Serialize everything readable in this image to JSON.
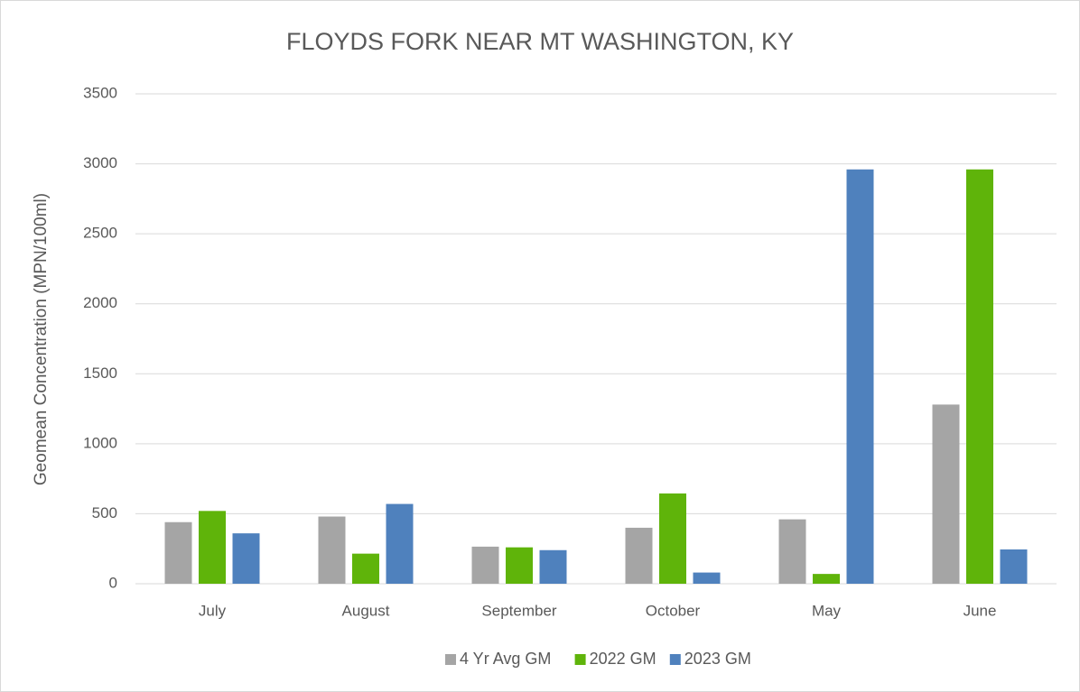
{
  "chart_data": {
    "type": "bar",
    "title": "FLOYDS FORK NEAR MT WASHINGTON, KY",
    "y_label": "Geomean Concentration (MPN/100ml)",
    "categories": [
      "July",
      "August",
      "September",
      "October",
      "May",
      "June"
    ],
    "series": [
      {
        "name": "4 Yr Avg GM",
        "color": "#a5a5a5",
        "values": [
          440,
          480,
          265,
          400,
          460,
          1280
        ]
      },
      {
        "name": "2022 GM",
        "color": "#5fb40a",
        "values": [
          520,
          215,
          260,
          645,
          70,
          2960
        ]
      },
      {
        "name": "2023 GM",
        "color": "#4f81bd",
        "values": [
          360,
          570,
          240,
          80,
          2960,
          245
        ]
      }
    ],
    "ylim": [
      0,
      3500
    ],
    "yticks": [
      0,
      500,
      1000,
      1500,
      2000,
      2500,
      3000,
      3500
    ],
    "grid": true,
    "legend": "bottom"
  }
}
